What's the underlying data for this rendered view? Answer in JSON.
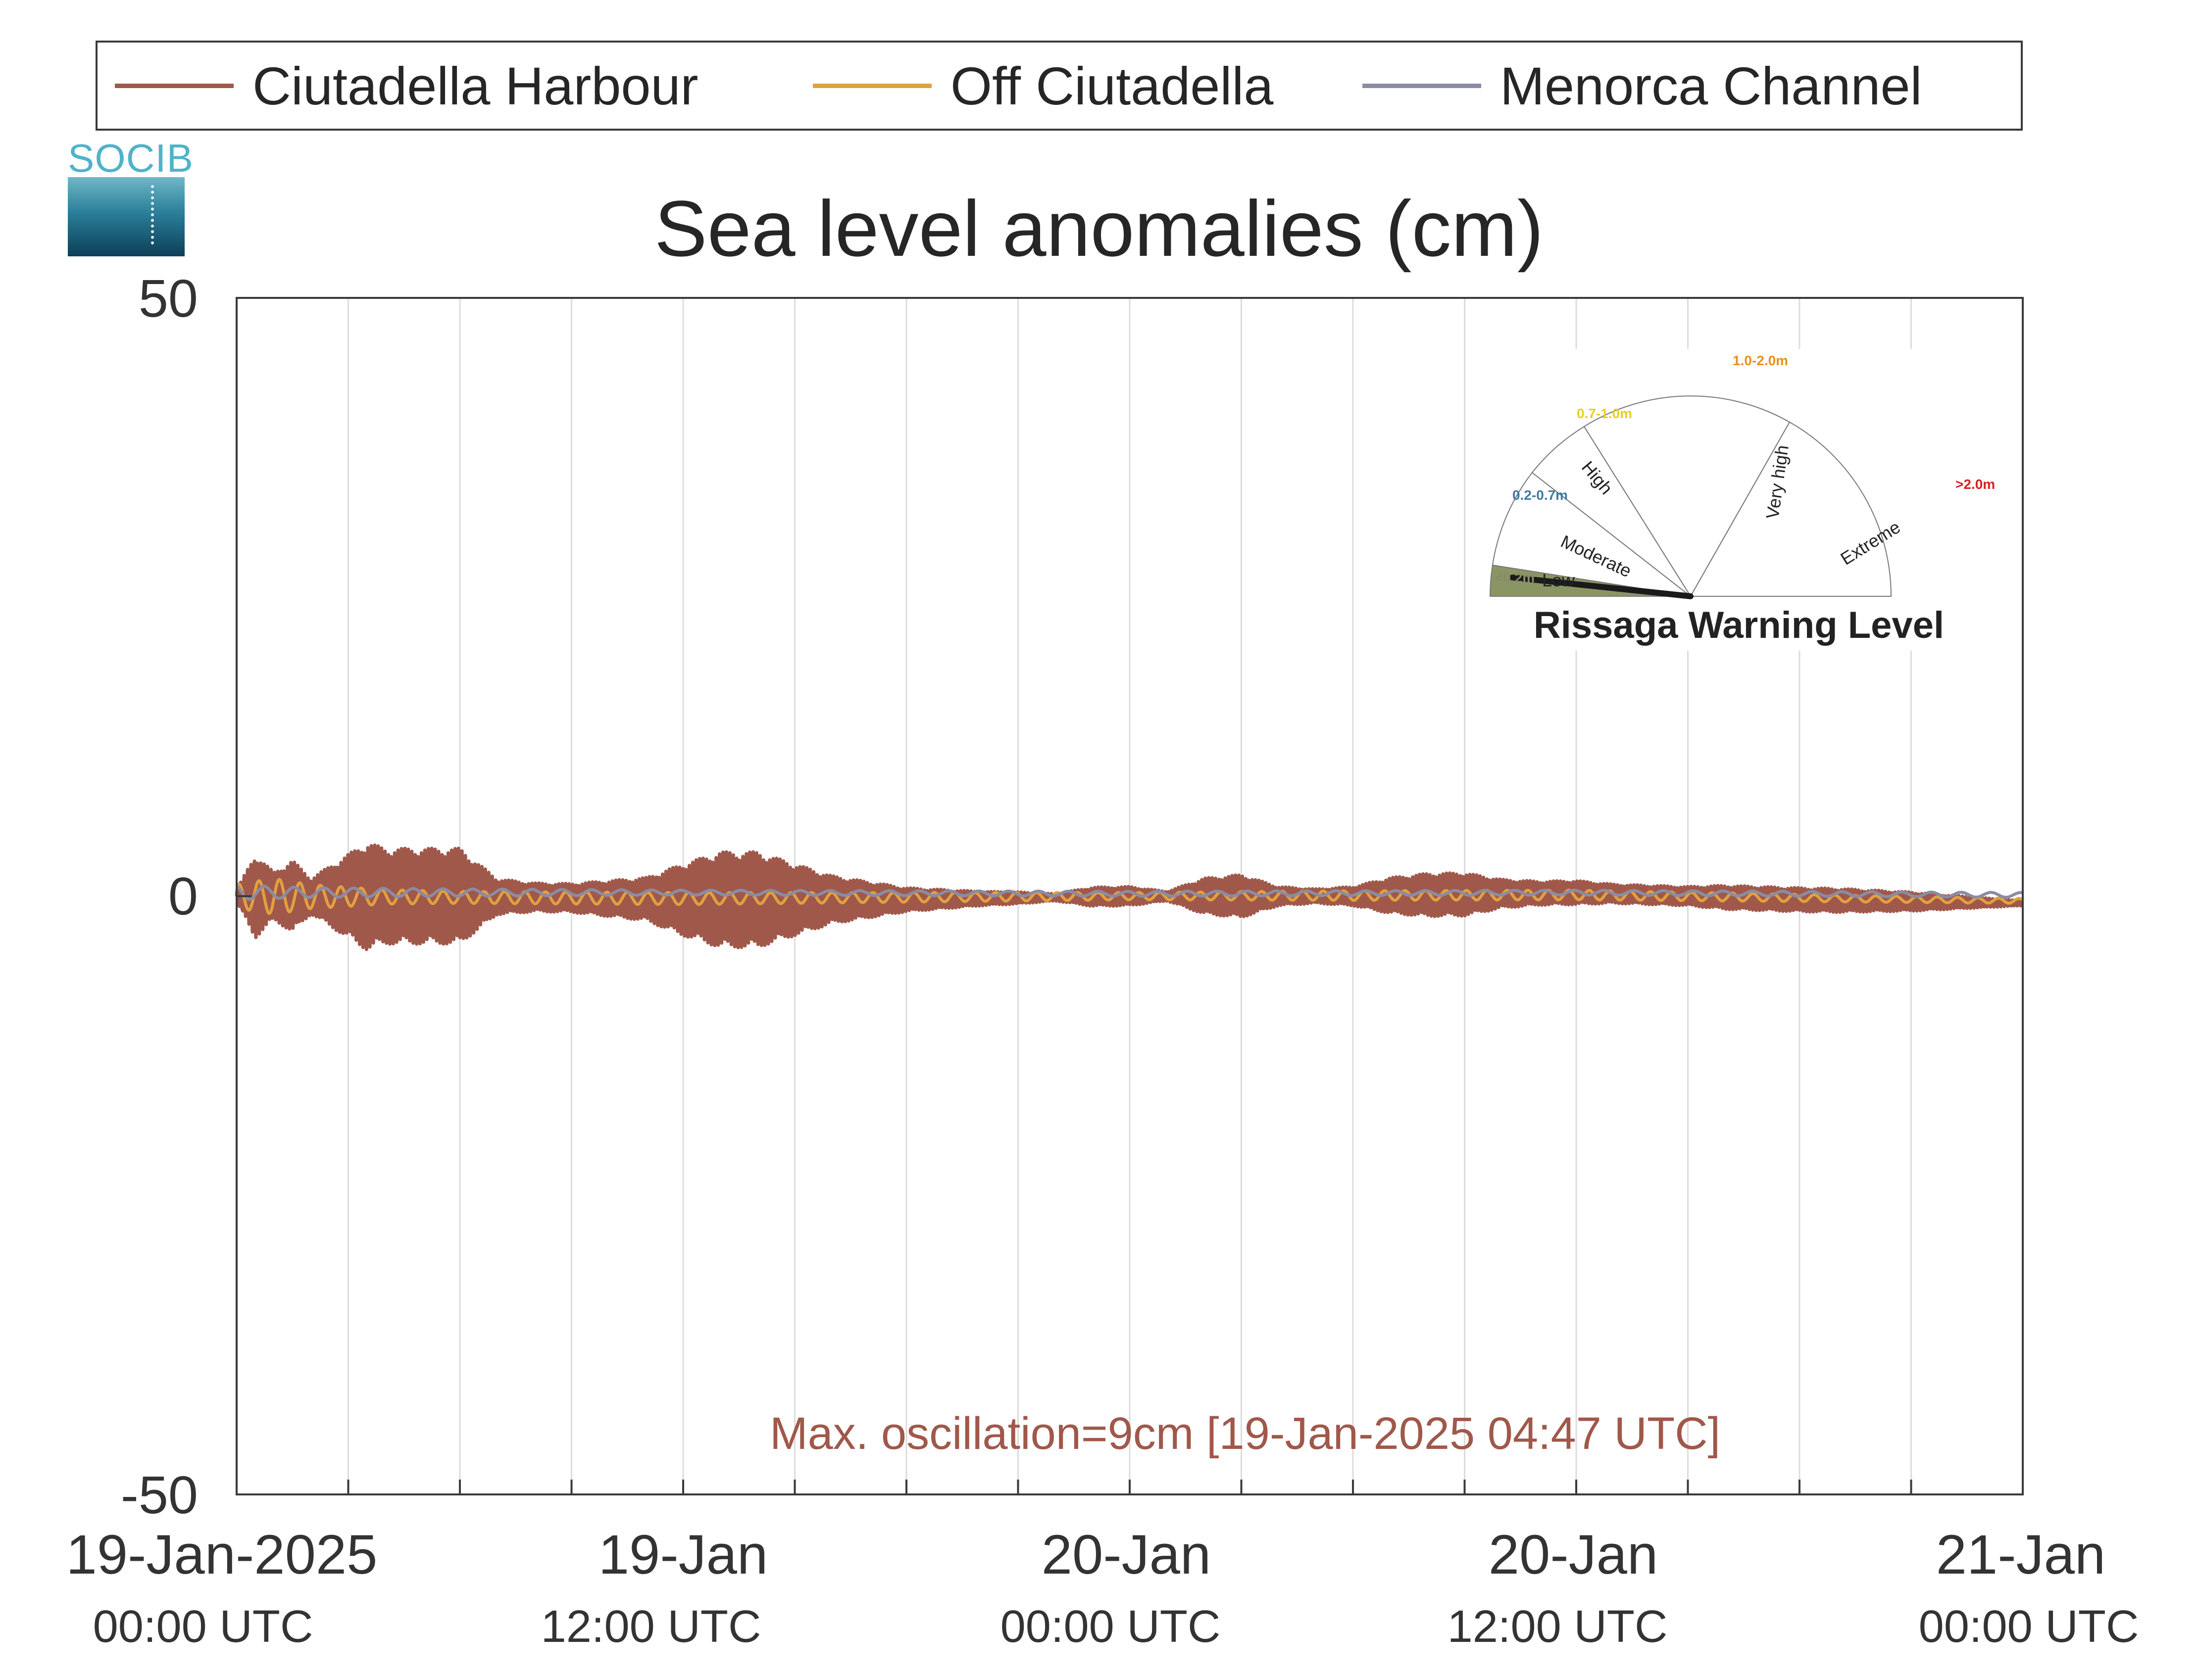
{
  "legend": {
    "items": [
      {
        "label": "Ciutadella Harbour",
        "color": "#a0584a"
      },
      {
        "label": "Off Ciutadella",
        "color": "#e0a040"
      },
      {
        "label": "Menorca Channel",
        "color": "#8a8ca4"
      }
    ]
  },
  "logo": {
    "text": "SOCIB"
  },
  "title": "Sea level anomalies (cm)",
  "footer": {
    "text": "Max. oscillation=9cm [19-Jan-2025 04:47 UTC]",
    "color": "#a0584a"
  },
  "gauge": {
    "title": "Rissaga Warning Level",
    "current_level": "Low",
    "segments": [
      {
        "name": "Low",
        "range": "<0.2m",
        "range_color": "#8a8a6a",
        "fill": "#8a9564"
      },
      {
        "name": "Moderate",
        "range": "0.2-0.7m",
        "range_color": "#3f7ba0",
        "fill": "none"
      },
      {
        "name": "High",
        "range": "0.7-1.0m",
        "range_color": "#e8d020",
        "fill": "none"
      },
      {
        "name": "Very high",
        "range": "1.0-2.0m",
        "range_color": "#e89020",
        "fill": "none"
      },
      {
        "name": "Extreme",
        "range": ">2.0m",
        "range_color": "#d82020",
        "fill": "none"
      }
    ]
  },
  "chart_data": {
    "type": "line",
    "title": "Sea level anomalies (cm)",
    "ylabel": "",
    "xlabel": "",
    "ylim": [
      -50,
      50
    ],
    "yticks": [
      "50",
      "0",
      "-50"
    ],
    "xlim": [
      "2025-01-19 00:00",
      "2025-01-21 00:00"
    ],
    "grid": "vertical, every 3 hours",
    "xticks": [
      {
        "date": "19-Jan-2025",
        "time": "00:00 UTC"
      },
      {
        "date": "19-Jan",
        "time": "12:00 UTC"
      },
      {
        "date": "20-Jan",
        "time": "00:00 UTC"
      },
      {
        "date": "20-Jan",
        "time": "12:00 UTC"
      },
      {
        "date": "21-Jan",
        "time": "00:00 UTC"
      }
    ],
    "series": [
      {
        "name": "Ciutadella Harbour",
        "color": "#a0584a",
        "note_envelope": "oscillation amplitude envelope (cm) vs hours since 19-Jan-2025 00:00",
        "envelope_hours": [
          0,
          0.5,
          1,
          1.5,
          2,
          3,
          3.5,
          4,
          4.5,
          5,
          6,
          7,
          8,
          9,
          10,
          11,
          12,
          13,
          14,
          15,
          16,
          17,
          18,
          19,
          20,
          21,
          22,
          23,
          24,
          25,
          26,
          27,
          28,
          29,
          30,
          31,
          32,
          33,
          34,
          35,
          36,
          37,
          38,
          39,
          40,
          41,
          42,
          43,
          44,
          45,
          46,
          47,
          48
        ],
        "envelope_cm": [
          0.5,
          3.5,
          2,
          3,
          1.5,
          3.5,
          4.5,
          4,
          4,
          4,
          4,
          1.5,
          1.2,
          1.2,
          1.5,
          1.8,
          3,
          4,
          4,
          3,
          2,
          1.5,
          1,
          0.8,
          0.6,
          0.5,
          0.3,
          0.8,
          0.8,
          0.4,
          1.5,
          1.8,
          0.8,
          0.6,
          0.8,
          1.5,
          1.8,
          1.8,
          1.2,
          1,
          1,
          0.8,
          0.8,
          0.8,
          1,
          1,
          1,
          1,
          0.9,
          0.8,
          0.6,
          0.4,
          0.2
        ],
        "mean_hours": [
          0,
          6,
          12,
          18,
          24,
          30,
          36,
          42,
          48
        ],
        "mean_cm": [
          0,
          0,
          -0.3,
          -0.3,
          0,
          0,
          0.3,
          -0.3,
          -0.6
        ]
      },
      {
        "name": "Off Ciutadella",
        "color": "#e0a040",
        "note_envelope": "amplitude envelope (cm)",
        "envelope_hours": [
          0,
          1,
          2,
          4,
          6,
          12,
          18,
          24,
          30,
          36,
          42,
          48
        ],
        "envelope_cm": [
          1,
          1.5,
          1,
          0.6,
          0.5,
          0.5,
          0.4,
          0.3,
          0.4,
          0.4,
          0.3,
          0.2
        ],
        "mean_hours": [
          0,
          12,
          24,
          36,
          48
        ],
        "mean_cm": [
          0,
          -0.2,
          0,
          0.1,
          -0.4
        ]
      },
      {
        "name": "Menorca Channel",
        "color": "#8a8ca4",
        "note_envelope": "amplitude envelope (cm)",
        "envelope_hours": [
          0,
          2,
          6,
          12,
          24,
          36,
          48
        ],
        "envelope_cm": [
          0.6,
          0.4,
          0.3,
          0.2,
          0.2,
          0.2,
          0.2
        ],
        "mean_hours": [
          0,
          12,
          24,
          36,
          48
        ],
        "mean_cm": [
          0.3,
          0.3,
          0.2,
          0.3,
          0.1
        ]
      }
    ],
    "annotation": "Max. oscillation=9cm [19-Jan-2025 04:47 UTC]"
  }
}
